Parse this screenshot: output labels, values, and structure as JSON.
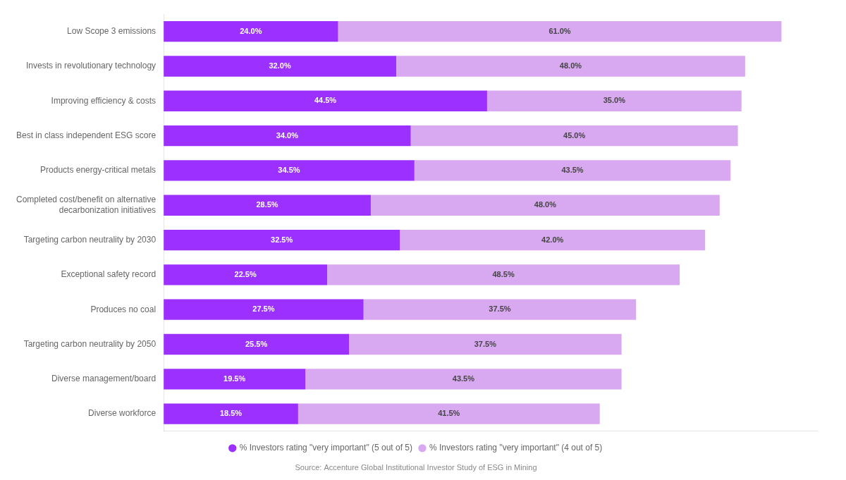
{
  "chart_data": {
    "type": "bar",
    "orientation": "horizontal",
    "stacked": true,
    "categories": [
      "Low Scope 3 emissions",
      "Invests in revolutionary technology",
      "Improving efficiency & costs",
      "Best in class independent ESG score",
      "Products energy-critical metals",
      "Completed cost/benefit on alternative\ndecarbonization initiatives",
      "Targeting carbon neutrality by 2030",
      "Exceptional safety record",
      "Produces no coal",
      "Targeting carbon neutrality by 2050",
      "Diverse management/board",
      "Diverse workforce"
    ],
    "series": [
      {
        "name": "% Investors rating \"very important\" (5 out of 5)",
        "color": "#9b30ff",
        "values": [
          24.0,
          32.0,
          44.5,
          34.0,
          34.5,
          28.5,
          32.5,
          22.5,
          27.5,
          25.5,
          19.5,
          18.5
        ],
        "value_labels": [
          "24.0%",
          "32.0%",
          "44.5%",
          "34.0%",
          "34.5%",
          "28.5%",
          "32.5%",
          "22.5%",
          "27.5%",
          "25.5%",
          "19.5%",
          "18.5%"
        ]
      },
      {
        "name": "% Investors rating \"very important\" (4 out of 5)",
        "color": "#d8a8f0",
        "values": [
          61.0,
          48.0,
          35.0,
          45.0,
          43.5,
          48.0,
          42.0,
          48.5,
          37.5,
          37.5,
          43.5,
          41.5
        ],
        "value_labels": [
          "61.0%",
          "48.0%",
          "35.0%",
          "45.0%",
          "43.5%",
          "48.0%",
          "42.0%",
          "48.5%",
          "37.5%",
          "37.5%",
          "43.5%",
          "41.5%"
        ]
      }
    ],
    "xlim": [
      0,
      90
    ],
    "grid": false,
    "legend": "bottom",
    "data_labels": true,
    "tick_labels": "y",
    "annotations": [
      "Source: Accenture Global Institutional Investor Study of ESG in Mining"
    ]
  }
}
